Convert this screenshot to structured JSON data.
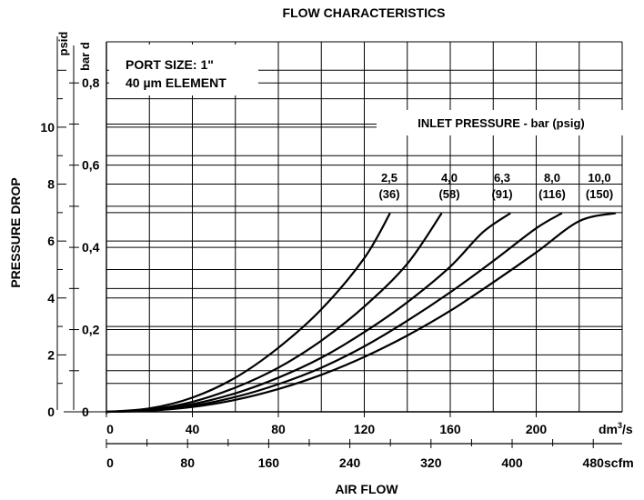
{
  "chart_data": {
    "type": "line",
    "title": "FLOW CHARACTERISTICS",
    "ylabel": "PRESSURE DROP",
    "xlabel": "AIR FLOW",
    "y_units": {
      "psid": "psid",
      "bar": "bar d"
    },
    "x_units": {
      "primary": "dm³/s",
      "primary_base": "dm",
      "primary_sup": "3",
      "primary_tail": "/s",
      "secondary": "scfm"
    },
    "x_primary": {
      "range": [
        0,
        240
      ],
      "ticks": [
        0,
        40,
        80,
        120,
        160,
        200
      ],
      "tick_labels": [
        "0",
        "40",
        "80",
        "120",
        "160",
        "200"
      ]
    },
    "x_secondary": {
      "range": [
        0,
        508.5
      ],
      "ticks": [
        0,
        80,
        160,
        240,
        320,
        400,
        480
      ],
      "tick_labels": [
        "0",
        "80",
        "160",
        "240",
        "320",
        "400",
        "480"
      ]
    },
    "y_psid": {
      "range": [
        0,
        13
      ],
      "ticks": [
        0,
        2,
        4,
        6,
        8,
        10
      ],
      "tick_labels": [
        "0",
        "2",
        "4",
        "6",
        "8",
        "10"
      ]
    },
    "y_bar": {
      "range": [
        0,
        0.9
      ],
      "ticks": [
        0,
        0.2,
        0.4,
        0.6,
        0.8
      ],
      "tick_labels": [
        "0",
        "0,2",
        "0,4",
        "0,6",
        "0,8"
      ]
    },
    "port_size": "PORT SIZE: 1\"",
    "element": "40 µm ELEMENT",
    "legend_title": "INLET PRESSURE - bar (psig)",
    "grid": true,
    "series": [
      {
        "name": "2,5 (36)",
        "label_bar": "2,5",
        "label_psig": "(36)",
        "points": [
          [
            0,
            0
          ],
          [
            20,
            0.12
          ],
          [
            40,
            0.5
          ],
          [
            60,
            1.2
          ],
          [
            80,
            2.25
          ],
          [
            100,
            3.6
          ],
          [
            120,
            5.4
          ],
          [
            132,
            6.98
          ]
        ]
      },
      {
        "name": "4,0 (58)",
        "label_bar": "4,0",
        "label_psig": "(58)",
        "points": [
          [
            0,
            0
          ],
          [
            20,
            0.08
          ],
          [
            40,
            0.35
          ],
          [
            60,
            0.85
          ],
          [
            80,
            1.55
          ],
          [
            100,
            2.5
          ],
          [
            120,
            3.7
          ],
          [
            140,
            5.2
          ],
          [
            156,
            6.98
          ]
        ]
      },
      {
        "name": "6,3 (91)",
        "label_bar": "6,3",
        "label_psig": "(91)",
        "points": [
          [
            0,
            0
          ],
          [
            20,
            0.06
          ],
          [
            40,
            0.27
          ],
          [
            60,
            0.65
          ],
          [
            80,
            1.2
          ],
          [
            100,
            1.9
          ],
          [
            120,
            2.8
          ],
          [
            140,
            3.85
          ],
          [
            160,
            5.1
          ],
          [
            175,
            6.3
          ],
          [
            188,
            6.98
          ]
        ]
      },
      {
        "name": "8,0 (116)",
        "label_bar": "8,0",
        "label_psig": "(116)",
        "points": [
          [
            0,
            0
          ],
          [
            20,
            0.05
          ],
          [
            40,
            0.21
          ],
          [
            60,
            0.52
          ],
          [
            80,
            0.97
          ],
          [
            100,
            1.55
          ],
          [
            120,
            2.3
          ],
          [
            140,
            3.2
          ],
          [
            160,
            4.2
          ],
          [
            180,
            5.3
          ],
          [
            200,
            6.45
          ],
          [
            212,
            6.98
          ]
        ]
      },
      {
        "name": "10,0 (150)",
        "label_bar": "10,0",
        "label_psig": "(150)",
        "points": [
          [
            0,
            0
          ],
          [
            20,
            0.04
          ],
          [
            40,
            0.17
          ],
          [
            60,
            0.42
          ],
          [
            80,
            0.8
          ],
          [
            100,
            1.3
          ],
          [
            120,
            1.93
          ],
          [
            140,
            2.68
          ],
          [
            160,
            3.55
          ],
          [
            180,
            4.55
          ],
          [
            200,
            5.6
          ],
          [
            220,
            6.7
          ],
          [
            237,
            6.98
          ]
        ]
      }
    ]
  }
}
